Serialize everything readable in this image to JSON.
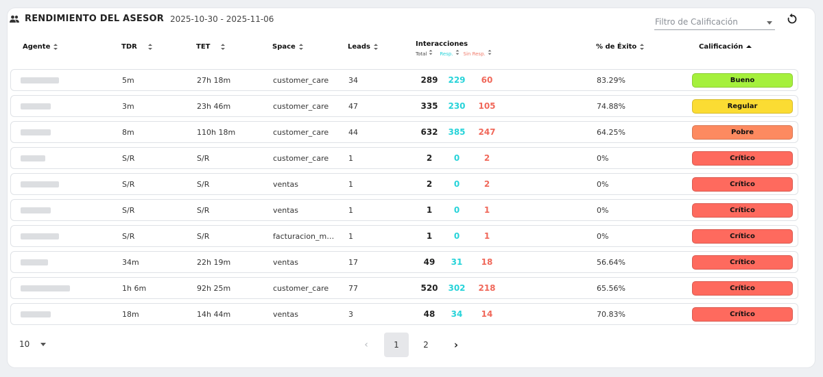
{
  "header": {
    "title": "RENDIMIENTO DEL ASESOR",
    "date_range": "2025-10-30 - 2025-11-06",
    "filter_placeholder": "Filtro de Calificación"
  },
  "columns": {
    "agente": "Agente",
    "tdr": "TDR",
    "tet": "TET",
    "space": "Space",
    "leads": "Leads",
    "interacciones": "Interacciones",
    "total": "Total",
    "resp": "Resp.",
    "sin_resp": "Sin Resp.",
    "exito": "% de Éxito",
    "calificacion": "Calificación"
  },
  "colors": {
    "bueno": "#a5f03c",
    "regular": "#fbdc33",
    "pobre": "#fd8a60",
    "critico": "#fe6a5e",
    "resp": "#27d3d9",
    "sin_resp": "#f0685a"
  },
  "rows": [
    {
      "tdr": "5m",
      "tet": "27h 18m",
      "space": "customer_care",
      "leads": "34",
      "total": "289",
      "resp": "229",
      "sin_resp": "60",
      "exito": "83.29%",
      "calificacion": "Bueno",
      "level": "bueno"
    },
    {
      "tdr": "3m",
      "tet": "23h 46m",
      "space": "customer_care",
      "leads": "47",
      "total": "335",
      "resp": "230",
      "sin_resp": "105",
      "exito": "74.88%",
      "calificacion": "Regular",
      "level": "regular"
    },
    {
      "tdr": "8m",
      "tet": "110h 18m",
      "space": "customer_care",
      "leads": "44",
      "total": "632",
      "resp": "385",
      "sin_resp": "247",
      "exito": "64.25%",
      "calificacion": "Pobre",
      "level": "pobre"
    },
    {
      "tdr": "S/R",
      "tet": "S/R",
      "space": "customer_care",
      "leads": "1",
      "total": "2",
      "resp": "0",
      "sin_resp": "2",
      "exito": "0%",
      "calificacion": "Crítico",
      "level": "critico"
    },
    {
      "tdr": "S/R",
      "tet": "S/R",
      "space": "ventas",
      "leads": "1",
      "total": "2",
      "resp": "0",
      "sin_resp": "2",
      "exito": "0%",
      "calificacion": "Crítico",
      "level": "critico"
    },
    {
      "tdr": "S/R",
      "tet": "S/R",
      "space": "ventas",
      "leads": "1",
      "total": "1",
      "resp": "0",
      "sin_resp": "1",
      "exito": "0%",
      "calificacion": "Crítico",
      "level": "critico"
    },
    {
      "tdr": "S/R",
      "tet": "S/R",
      "space": "facturacion_m…",
      "leads": "1",
      "total": "1",
      "resp": "0",
      "sin_resp": "1",
      "exito": "0%",
      "calificacion": "Crítico",
      "level": "critico"
    },
    {
      "tdr": "34m",
      "tet": "22h 19m",
      "space": "ventas",
      "leads": "17",
      "total": "49",
      "resp": "31",
      "sin_resp": "18",
      "exito": "56.64%",
      "calificacion": "Crítico",
      "level": "critico"
    },
    {
      "tdr": "1h 6m",
      "tet": "92h 25m",
      "space": "customer_care",
      "leads": "77",
      "total": "520",
      "resp": "302",
      "sin_resp": "218",
      "exito": "65.56%",
      "calificacion": "Crítico",
      "level": "critico"
    },
    {
      "tdr": "18m",
      "tet": "14h 44m",
      "space": "ventas",
      "leads": "3",
      "total": "48",
      "resp": "34",
      "sin_resp": "14",
      "exito": "70.83%",
      "calificacion": "Crítico",
      "level": "critico"
    }
  ],
  "pagination": {
    "page_size": "10",
    "pages": [
      "1",
      "2"
    ],
    "current": "1"
  }
}
